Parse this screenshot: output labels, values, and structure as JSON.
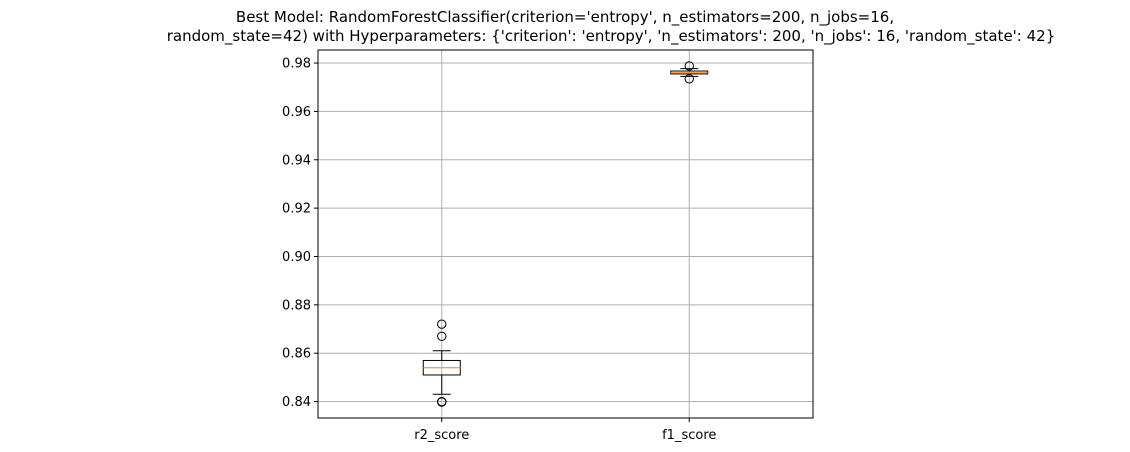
{
  "chart_data": {
    "type": "box",
    "title_lines": [
      "Best Model: RandomForestClassifier(criterion='entropy', n_estimators=200, n_jobs=16,",
      "random_state=42) with Hyperparameters: {'criterion': 'entropy', 'n_estimators': 200, 'n_jobs': 16, 'random_state': 42}"
    ],
    "xlabel": "",
    "ylabel": "",
    "ylim": [
      0.8332,
      0.9854
    ],
    "yticks": [
      0.84,
      0.86,
      0.88,
      0.9,
      0.92,
      0.94,
      0.96,
      0.98
    ],
    "ytick_labels": [
      "0.84",
      "0.86",
      "0.88",
      "0.90",
      "0.92",
      "0.94",
      "0.96",
      "0.98"
    ],
    "grid": true,
    "categories": [
      "r2_score",
      "f1_score"
    ],
    "boxes": [
      {
        "label": "r2_score",
        "whisker_low": 0.843,
        "q1": 0.851,
        "median": 0.854,
        "q3": 0.857,
        "whisker_high": 0.861,
        "outliers": [
          0.8398,
          0.84,
          0.867,
          0.872
        ]
      },
      {
        "label": "f1_score",
        "whisker_low": 0.9745,
        "q1": 0.9755,
        "median": 0.976,
        "q3": 0.9767,
        "whisker_high": 0.9777,
        "outliers": [
          0.9735,
          0.9788
        ]
      }
    ],
    "colors": {
      "box": "#000000",
      "median": "#ff7f0e",
      "grid": "#b0b0b0",
      "background": "#ffffff"
    }
  }
}
